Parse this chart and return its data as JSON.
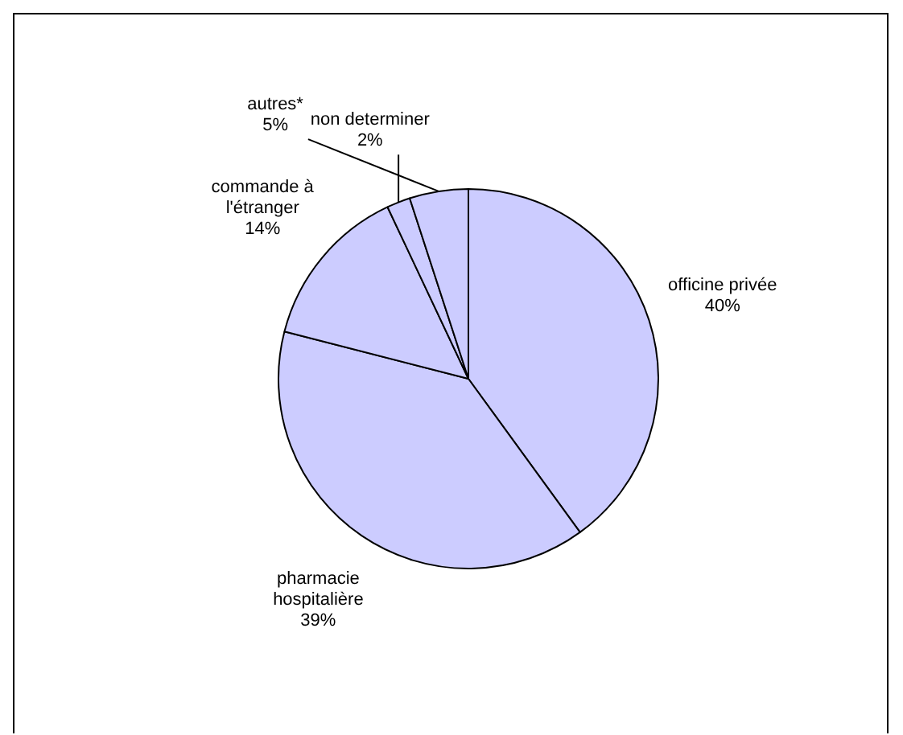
{
  "chart_data": {
    "type": "pie",
    "categories": [
      "officine privée",
      "pharmacie hospitalière",
      "commande à l'étranger",
      "non determiner",
      "autres*"
    ],
    "values": [
      40,
      39,
      14,
      2,
      5
    ],
    "value_labels": [
      "40%",
      "39%",
      "14%",
      "2%",
      "5%"
    ],
    "colors": [
      "#ccccff",
      "#ccccff",
      "#ccccff",
      "#ccccff",
      "#ccccff"
    ],
    "legend": false
  }
}
